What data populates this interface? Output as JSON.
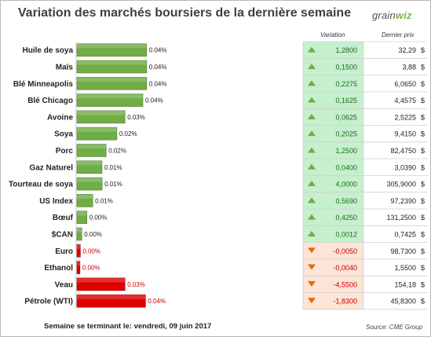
{
  "header": {
    "title": "Variation des marchés boursiers de la dernière semaine",
    "logo_text_1": "grain",
    "logo_text_2": "wiz"
  },
  "table": {
    "col_variation": "Variation",
    "col_price": "Dernier prix",
    "currency": "$"
  },
  "footer": {
    "week_text": "Semaine se terminant le: vendredi, 09 juin 2017",
    "source": "Source: CME Group"
  },
  "colors": {
    "up_bar": "#70ad47",
    "down_bar": "#e00000",
    "up_bg": "#c6efce",
    "down_bg": "#fce4d6",
    "up_arrow": "#70ad47",
    "down_arrow": "#e46c0a"
  },
  "chart_data": {
    "type": "bar",
    "orientation": "horizontal",
    "title": "Variation des marchés boursiers de la dernière semaine",
    "categories": [
      "Huile de soya",
      "Maïs",
      "Blé Minneapolis",
      "Blé Chicago",
      "Avoine",
      "Soya",
      "Porc",
      "Gaz Naturel",
      "Tourteau de soya",
      "US Index",
      "Bœuf",
      "$CAN",
      "Euro",
      "Ethanol",
      "Veau",
      "Pétrole (WTI)"
    ],
    "values": [
      0.04,
      0.04,
      0.04,
      0.04,
      0.03,
      0.02,
      0.02,
      0.01,
      0.01,
      0.01,
      0.0,
      0.0,
      0.0,
      0.0,
      0.03,
      0.04
    ],
    "direction": [
      "up",
      "up",
      "up",
      "up",
      "up",
      "up",
      "up",
      "up",
      "up",
      "up",
      "up",
      "up",
      "down",
      "down",
      "down",
      "down"
    ],
    "value_labels": [
      "0.04%",
      "0.04%",
      "0.04%",
      "0.04%",
      "0.03%",
      "0.02%",
      "0.02%",
      "0.01%",
      "0.01%",
      "0.01%",
      "0.00%",
      "0.00%",
      "0.00%",
      "0.00%",
      "0.03%",
      "0.04%"
    ],
    "variation": [
      "1,2800",
      "0,1500",
      "0,2275",
      "0,1625",
      "0,0625",
      "0,2025",
      "1,2500",
      "0,0400",
      "4,0000",
      "0,5690",
      "0,4250",
      "0,0012",
      "-0,0050",
      "-0,0040",
      "-4,5500",
      "-1,8300"
    ],
    "last_price": [
      "32,29",
      "3,88",
      "6,0650",
      "4,4575",
      "2,5225",
      "9,4150",
      "82,4750",
      "3,0390",
      "305,9000",
      "97,2390",
      "131,2500",
      "0,7425",
      "98,7300",
      "1,5500",
      "154,18",
      "45,8300"
    ],
    "bar_magnitude": [
      0.037,
      0.037,
      0.037,
      0.035,
      0.0255,
      0.0212,
      0.0155,
      0.0133,
      0.0134,
      0.0084,
      0.0053,
      0.0026,
      0.0018,
      0.0016,
      0.0255,
      0.0364
    ],
    "xlim": [
      0,
      0.04
    ]
  }
}
